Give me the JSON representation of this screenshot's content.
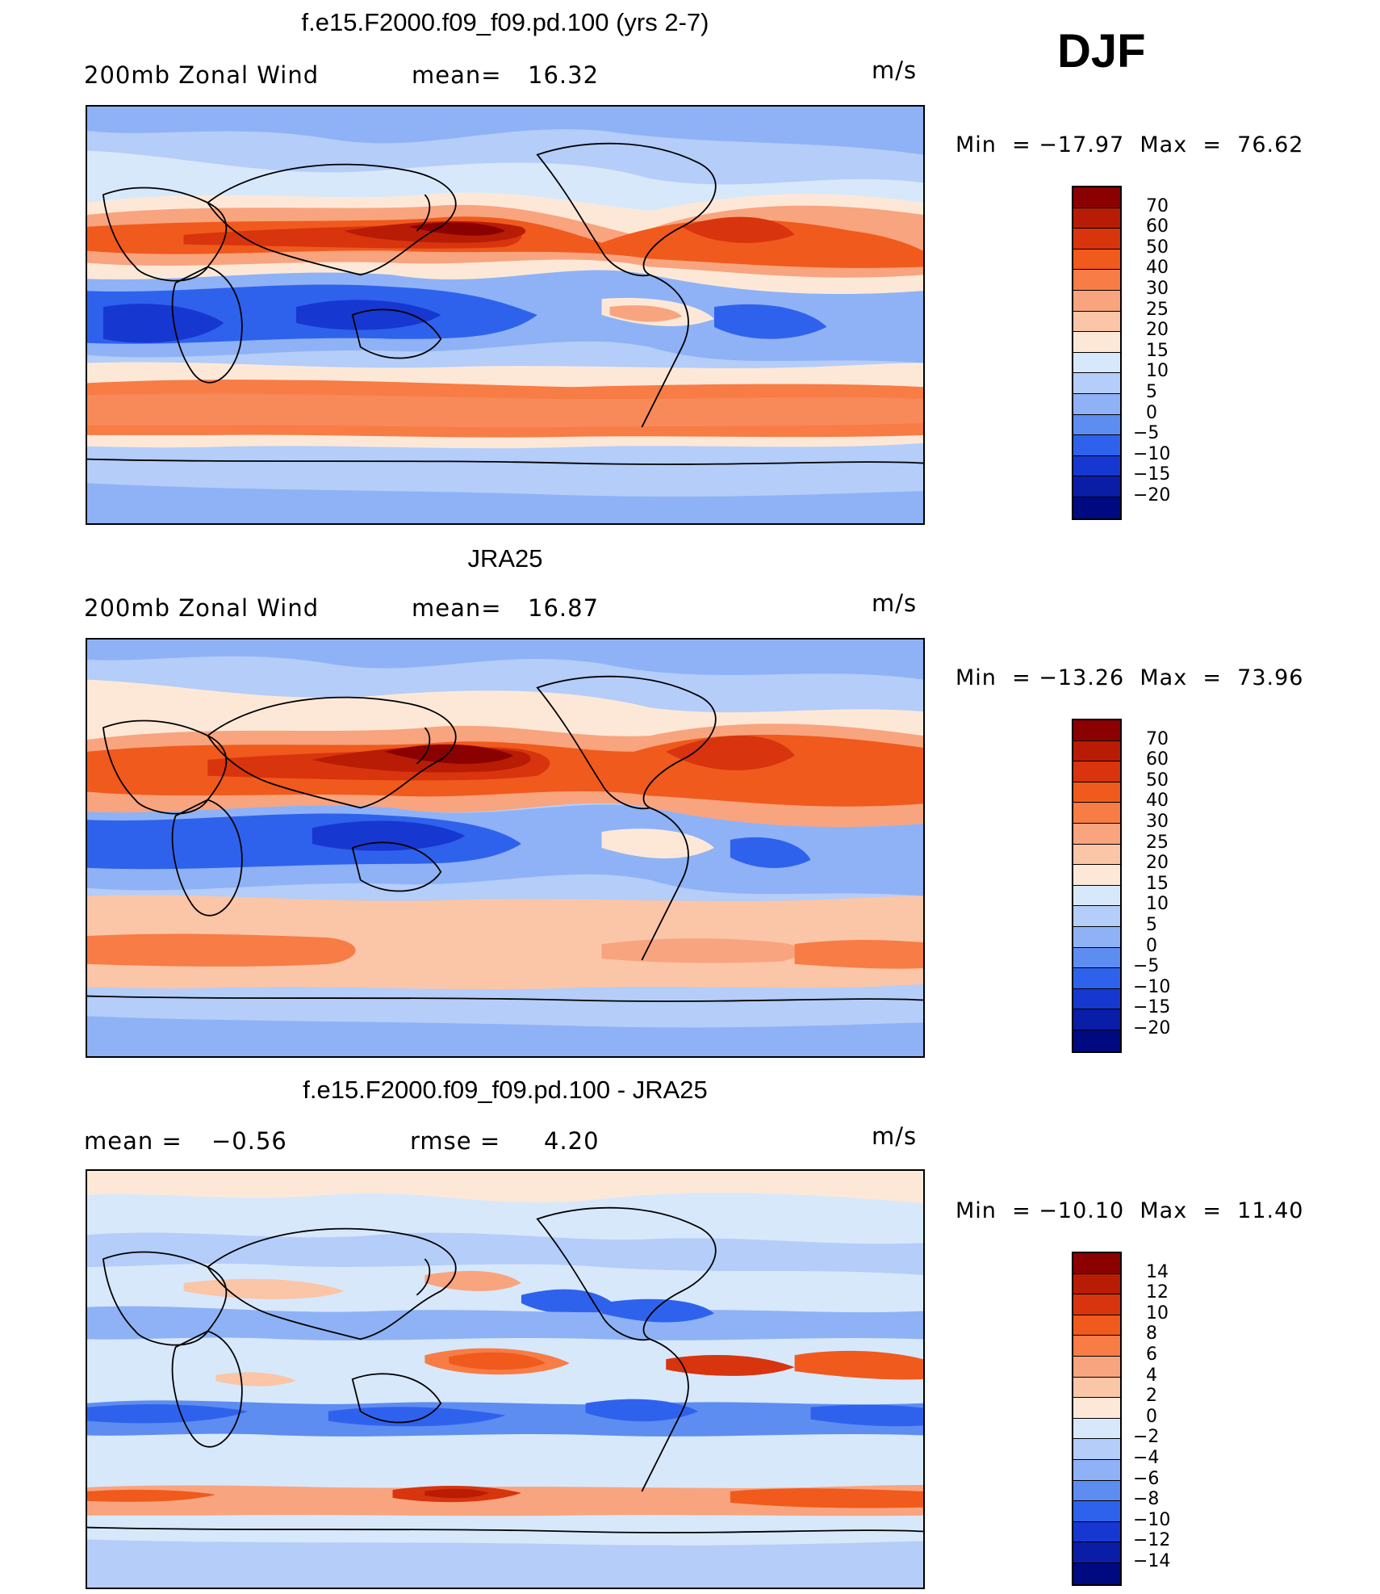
{
  "season": "DJF",
  "units": "m/s",
  "panels": [
    {
      "title": "f.e15.F2000.f09_f09.pd.100 (yrs 2-7)",
      "left_label": "200mb  Zonal  Wind",
      "stat_label": "mean=",
      "stat_value": "16.32",
      "units": "m/s",
      "min_label": "Min  =",
      "min_value": "−17.97",
      "max_label": "Max  =",
      "max_value": "76.62",
      "colorbar_levels": [
        "70",
        "60",
        "50",
        "40",
        "30",
        "25",
        "20",
        "15",
        "10",
        "5",
        "0",
        "−5",
        "−10",
        "−15",
        "−20"
      ],
      "colors": [
        "#8b0000",
        "#b81c05",
        "#d8340e",
        "#f05a1d",
        "#f77c45",
        "#f8a47f",
        "#fbc5a8",
        "#fde8d8",
        "#d8e8fb",
        "#b4cdf9",
        "#8eb2f5",
        "#5d8df1",
        "#2f62ec",
        "#1638d0",
        "#0a1da6",
        "#000a80"
      ]
    },
    {
      "title": "JRA25",
      "left_label": "200mb  Zonal  Wind",
      "stat_label": "mean=",
      "stat_value": "16.87",
      "units": "m/s",
      "min_label": "Min  =",
      "min_value": "−13.26",
      "max_label": "Max  =",
      "max_value": "73.96",
      "colorbar_levels": [
        "70",
        "60",
        "50",
        "40",
        "30",
        "25",
        "20",
        "15",
        "10",
        "5",
        "0",
        "−5",
        "−10",
        "−15",
        "−20"
      ],
      "colors": [
        "#8b0000",
        "#b81c05",
        "#d8340e",
        "#f05a1d",
        "#f77c45",
        "#f8a47f",
        "#fbc5a8",
        "#fde8d8",
        "#d8e8fb",
        "#b4cdf9",
        "#8eb2f5",
        "#5d8df1",
        "#2f62ec",
        "#1638d0",
        "#0a1da6",
        "#000a80"
      ]
    },
    {
      "title": "f.e15.F2000.f09_f09.pd.100 - JRA25",
      "left_label": "mean  =",
      "left_value": "−0.56",
      "stat_label": "rmse  =",
      "stat_value": "4.20",
      "units": "m/s",
      "min_label": "Min  =",
      "min_value": "−10.10",
      "max_label": "Max  =",
      "max_value": "11.40",
      "colorbar_levels": [
        "14",
        "12",
        "10",
        "8",
        "6",
        "4",
        "2",
        "0",
        "−2",
        "−4",
        "−6",
        "−8",
        "−10",
        "−12",
        "−14"
      ],
      "colors": [
        "#8b0000",
        "#b81c05",
        "#d8340e",
        "#f05a1d",
        "#f77c45",
        "#f8a47f",
        "#fbc5a8",
        "#fde8d8",
        "#d8e8fb",
        "#b4cdf9",
        "#8eb2f5",
        "#5d8df1",
        "#2f62ec",
        "#1638d0",
        "#0a1da6",
        "#000a80"
      ]
    }
  ]
}
